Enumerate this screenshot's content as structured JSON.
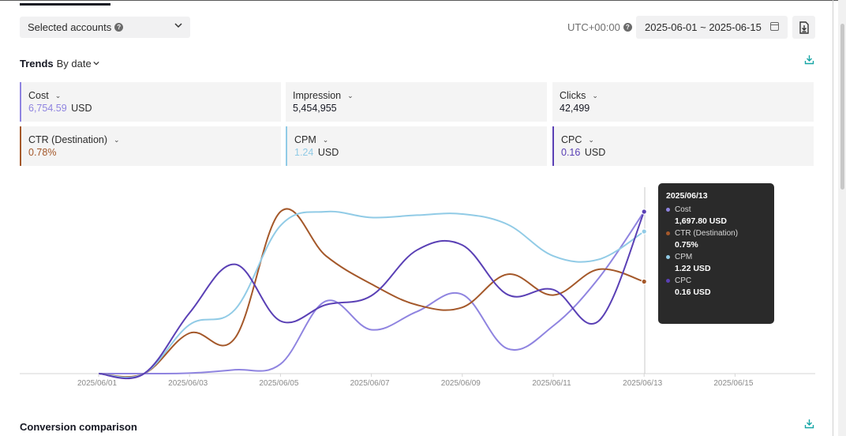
{
  "colors": {
    "cost": "#8f84e0",
    "ctr": "#a4582a",
    "cpm": "#91cbe6",
    "cpc": "#5a40b5",
    "teal": "#17a6a6"
  },
  "toolbar": {
    "accounts_label": "Selected accounts",
    "timezone": "UTC+00:00",
    "date_range": "2025-06-01 ~ 2025-06-15"
  },
  "trends": {
    "title": "Trends",
    "group_by": "By date"
  },
  "metrics": [
    {
      "name": "Cost",
      "value": "6,754.59",
      "unit": "USD",
      "active": true,
      "color": "#8f84e0"
    },
    {
      "name": "Impression",
      "value": "5,454,955",
      "unit": "",
      "active": false,
      "color": "#161823"
    },
    {
      "name": "Clicks",
      "value": "42,499",
      "unit": "",
      "active": false,
      "color": "#161823"
    },
    {
      "name": "CTR (Destination)",
      "value": "0.78%",
      "unit": "",
      "active": true,
      "color": "#a4582a"
    },
    {
      "name": "CPM",
      "value": "1.24",
      "unit": "USD",
      "active": true,
      "color": "#91cbe6"
    },
    {
      "name": "CPC",
      "value": "0.16",
      "unit": "USD",
      "active": true,
      "color": "#5a40b5"
    }
  ],
  "chart_data": {
    "type": "line",
    "x": [
      "2025/06/01",
      "2025/06/02",
      "2025/06/03",
      "2025/06/04",
      "2025/06/05",
      "2025/06/06",
      "2025/06/07",
      "2025/06/08",
      "2025/06/09",
      "2025/06/10",
      "2025/06/11",
      "2025/06/12",
      "2025/06/13",
      "2025/06/14",
      "2025/06/15"
    ],
    "x_tick_labels": [
      "2025/06/01",
      "2025/06/03",
      "2025/06/05",
      "2025/06/07",
      "2025/06/09",
      "2025/06/11",
      "2025/06/13",
      "2025/06/15"
    ],
    "grid": false,
    "series": [
      {
        "name": "Cost",
        "key": "cost",
        "values": [
          0,
          0,
          5,
          40,
          100,
          760,
          460,
          650,
          830,
          260,
          500,
          1000,
          1697.8,
          null,
          null
        ]
      },
      {
        "name": "CTR (Destination)",
        "key": "ctr",
        "values": [
          0,
          0,
          0.33,
          0.29,
          1.32,
          0.96,
          0.73,
          0.56,
          0.54,
          0.81,
          0.64,
          0.85,
          0.75,
          null,
          null
        ]
      },
      {
        "name": "CPM",
        "key": "cpm",
        "values": [
          0,
          0,
          0.42,
          0.55,
          1.27,
          1.39,
          1.34,
          1.36,
          1.37,
          1.28,
          1.01,
          0.98,
          1.22,
          null,
          null
        ]
      },
      {
        "name": "CPC",
        "key": "cpc",
        "values": [
          0,
          0,
          0.06,
          0.108,
          0.052,
          0.068,
          0.077,
          0.122,
          0.127,
          0.078,
          0.083,
          0.052,
          0.16,
          null,
          null
        ]
      }
    ],
    "tooltip": {
      "date": "2025/06/13",
      "items": [
        {
          "label": "Cost",
          "value": "1,697.80 USD",
          "key": "cost"
        },
        {
          "label": "CTR (Destination)",
          "value": "0.75%",
          "key": "ctr"
        },
        {
          "label": "CPM",
          "value": "1.22 USD",
          "key": "cpm"
        },
        {
          "label": "CPC",
          "value": "0.16 USD",
          "key": "cpc"
        }
      ]
    }
  },
  "conversion": {
    "title": "Conversion comparison"
  }
}
